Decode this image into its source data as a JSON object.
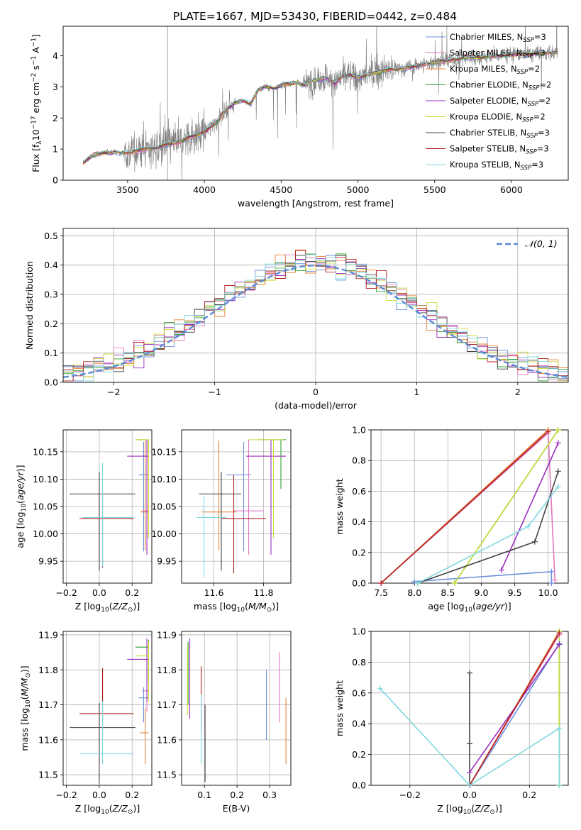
{
  "figure": {
    "title": "PLATE=1667, MJD=53430, FIBERID=0442, z=0.484"
  },
  "series_styles": [
    {
      "name": "Chabrier MILES, N$_{SSP}$=3",
      "label": "Chabrier MILES, N",
      "sub": "SSP",
      "n": "=3",
      "color": "#6a8fdb"
    },
    {
      "name": "Salpeter MILES, N$_{SSP}$=3",
      "label": "Salpeter MILES, N",
      "sub": "SSP",
      "n": "=3",
      "color": "#e377c2"
    },
    {
      "name": "Kroupa MILES, N$_{SSP}$=2",
      "label": "Kroupa MILES, N",
      "sub": "SSP",
      "n": "=2",
      "color": "#e8833a"
    },
    {
      "name": "Chabrier ELODIE, N$_{SSP}$=2",
      "label": "Chabrier ELODIE, N",
      "sub": "SSP",
      "n": "=2",
      "color": "#2ca02c"
    },
    {
      "name": "Salpeter ELODIE, N$_{SSP}$=2",
      "label": "Salpeter ELODIE, N",
      "sub": "SSP",
      "n": "=2",
      "color": "#9b2fbf"
    },
    {
      "name": "Kroupa ELODIE, N$_{SSP}$=2",
      "label": "Kroupa ELODIE, N",
      "sub": "SSP",
      "n": "=2",
      "color": "#cddc39"
    },
    {
      "name": "Chabrier STELIB, N$_{SSP}$=3",
      "label": "Chabrier STELIB, N",
      "sub": "SSP",
      "n": "=3",
      "color": "#444444"
    },
    {
      "name": "Salpeter STELIB, N$_{SSP}$=3",
      "label": "Salpeter STELIB, N",
      "sub": "SSP",
      "n": "=3",
      "color": "#b22222"
    },
    {
      "name": "Kroupa STELIB, N$_{SSP}$=3",
      "label": "Kroupa STELIB, N",
      "sub": "SSP",
      "n": "=3",
      "color": "#80d8e0"
    }
  ],
  "chart_data": [
    {
      "id": "spectrum",
      "type": "line",
      "title": "PLATE=1667, MJD=53430, FIBERID=0442, z=0.484",
      "xlabel": "wavelength [Angstrom, rest frame]",
      "ylabel": "Flux [f_λ 10^-17 erg cm^-2 s^-1 A^-1]",
      "xlim": [
        3080,
        6370
      ],
      "ylim": [
        0,
        4.95
      ],
      "xticks": [
        3500,
        4000,
        4500,
        5000,
        5500,
        6000
      ],
      "yticks": [
        0,
        1,
        2,
        3,
        4
      ],
      "grid": false,
      "legend": "right",
      "data_color": "#808080",
      "model_continuum": {
        "x": [
          3210,
          3240,
          3300,
          3400,
          3500,
          3600,
          3700,
          3760,
          3800,
          3850,
          3900,
          3950,
          4000,
          4050,
          4100,
          4150,
          4200,
          4250,
          4300,
          4350,
          4400,
          4450,
          4500,
          4550,
          4600,
          4650,
          4700,
          4750,
          4800,
          4850,
          4900,
          4950,
          5000,
          5100,
          5200,
          5300,
          5400,
          5500,
          5600,
          5700,
          5800,
          5900,
          6000,
          6100,
          6200,
          6300
        ],
        "y": [
          0.55,
          0.68,
          0.85,
          0.9,
          0.88,
          1.0,
          1.05,
          1.15,
          1.2,
          1.25,
          1.4,
          1.45,
          1.55,
          1.75,
          2.0,
          2.3,
          2.5,
          2.55,
          2.45,
          2.9,
          3.0,
          2.95,
          3.05,
          3.1,
          3.15,
          3.05,
          3.2,
          3.25,
          3.3,
          3.1,
          3.35,
          3.4,
          3.3,
          3.45,
          3.55,
          3.6,
          3.7,
          3.8,
          3.85,
          3.95,
          3.95,
          4.0,
          4.05,
          4.05,
          4.1,
          4.1
        ]
      },
      "series": [
        "Chabrier MILES, N$_{SSP}$=3",
        "Salpeter MILES, N$_{SSP}$=3",
        "Kroupa MILES, N$_{SSP}$=2",
        "Chabrier ELODIE, N$_{SSP}$=2",
        "Salpeter ELODIE, N$_{SSP}$=2",
        "Kroupa ELODIE, N$_{SSP}$=2",
        "Chabrier STELIB, N$_{SSP}$=3",
        "Salpeter STELIB, N$_{SSP}$=3",
        "Kroupa STELIB, N$_{SSP}$=3"
      ]
    },
    {
      "id": "residuals",
      "type": "line",
      "xlabel": "(data-model)/error",
      "ylabel": "Normed distribution",
      "xlim": [
        -2.5,
        2.5
      ],
      "ylim": [
        0,
        0.525
      ],
      "xticks": [
        -2,
        -1,
        0,
        1,
        2
      ],
      "yticks": [
        0.0,
        0.1,
        0.2,
        0.3,
        0.4,
        0.5
      ],
      "grid": true,
      "legend": "top-right",
      "reference": {
        "name": "N(0,1)",
        "label": "𝒩(0, 1)",
        "mean": 0,
        "sigma": 1,
        "color": "#5b8bd6"
      },
      "histogram_bin_width": 0.1,
      "histogram_range": [
        -2.5,
        2.5
      ]
    },
    {
      "id": "age-vs-Z",
      "type": "scatter",
      "xlabel": "Z [log10(Z/Z⊙)]",
      "ylabel": "age [log10(age/yr)]",
      "xlim": [
        -0.22,
        0.32
      ],
      "ylim": [
        9.91,
        10.19
      ],
      "xticks": [
        -0.2,
        0.0,
        0.2
      ],
      "yticks": [
        9.95,
        10.0,
        10.05,
        10.1,
        10.15
      ],
      "xtick_labels": [
        "−0.2",
        "0.0",
        "0.2"
      ],
      "ytick_labels": [
        "9.95",
        "10.00",
        "10.05",
        "10.10",
        "10.15"
      ],
      "grid": true,
      "points": [
        {
          "series": 0,
          "x": 0.27,
          "y": 10.108,
          "xerr": [
            0.03,
            0.03
          ],
          "yerr": [
            0.14,
            0.06
          ]
        },
        {
          "series": 1,
          "x": 0.29,
          "y": 10.042,
          "xerr": [
            0.03,
            0.01
          ],
          "yerr": [
            0.08,
            0.13
          ]
        },
        {
          "series": 2,
          "x": 0.28,
          "y": 10.04,
          "xerr": [
            0.03,
            0.02
          ],
          "yerr": [
            0.07,
            0.13
          ]
        },
        {
          "series": 3,
          "x": 0.3,
          "y": 10.172,
          "xerr": [
            0.08,
            0.0
          ],
          "yerr": [
            0.02,
            0.0
          ]
        },
        {
          "series": 4,
          "x": 0.29,
          "y": 10.142,
          "xerr": [
            0.12,
            0.01
          ],
          "yerr": [
            0.18,
            0.03
          ]
        },
        {
          "series": 5,
          "x": 0.3,
          "y": 10.172,
          "xerr": [
            0.08,
            0.0
          ],
          "yerr": [
            0.18,
            0.0
          ]
        },
        {
          "series": 6,
          "x": 0.0,
          "y": 10.073,
          "xerr": [
            0.18,
            0.22
          ],
          "yerr": [
            0.14,
            0.04
          ]
        },
        {
          "series": 7,
          "x": 0.02,
          "y": 10.028,
          "xerr": [
            0.14,
            0.19
          ],
          "yerr": [
            0.09,
            0.05
          ]
        },
        {
          "series": 8,
          "x": 0.02,
          "y": 10.03,
          "xerr": [
            0.12,
            0.19
          ],
          "yerr": [
            0.09,
            0.1
          ]
        }
      ]
    },
    {
      "id": "age-vs-mass",
      "type": "scatter",
      "xlabel": "mass [log10(M/M⊙)]",
      "ylabel": "",
      "xlim": [
        11.47,
        11.91
      ],
      "ylim": [
        9.91,
        10.19
      ],
      "xticks": [
        11.6,
        11.8
      ],
      "yticks": [
        9.95,
        10.0,
        10.05,
        10.1,
        10.15
      ],
      "xtick_labels": [
        "11.6",
        "11.8"
      ],
      "ytick_labels": [
        "9.95",
        "10.00",
        "10.05",
        "10.10",
        "10.15"
      ],
      "grid": true,
      "points": [
        {
          "series": 0,
          "x": 11.72,
          "y": 10.108,
          "xerr": [
            0.07,
            0.03
          ],
          "yerr": [
            0.14,
            0.06
          ]
        },
        {
          "series": 1,
          "x": 11.74,
          "y": 10.042,
          "xerr": [
            0.06,
            0.06
          ],
          "yerr": [
            0.08,
            0.13
          ]
        },
        {
          "series": 2,
          "x": 11.62,
          "y": 10.04,
          "xerr": [
            0.07,
            0.07
          ],
          "yerr": [
            0.07,
            0.13
          ]
        },
        {
          "series": 3,
          "x": 11.87,
          "y": 10.172,
          "xerr": [
            0.09,
            0.02
          ],
          "yerr": [
            0.09,
            0.0
          ]
        },
        {
          "series": 4,
          "x": 11.83,
          "y": 10.142,
          "xerr": [
            0.1,
            0.06
          ],
          "yerr": [
            0.18,
            0.03
          ]
        },
        {
          "series": 5,
          "x": 11.84,
          "y": 10.172,
          "xerr": [
            0.1,
            0.04
          ],
          "yerr": [
            0.18,
            0.0
          ]
        },
        {
          "series": 6,
          "x": 11.63,
          "y": 10.073,
          "xerr": [
            0.09,
            0.08
          ],
          "yerr": [
            0.14,
            0.04
          ]
        },
        {
          "series": 7,
          "x": 11.68,
          "y": 10.028,
          "xerr": [
            0.05,
            0.13
          ],
          "yerr": [
            0.1,
            0.08
          ]
        },
        {
          "series": 8,
          "x": 11.56,
          "y": 10.03,
          "xerr": [
            0.03,
            0.09
          ],
          "yerr": [
            0.11,
            0.04
          ]
        }
      ]
    },
    {
      "id": "weight-vs-age",
      "type": "line",
      "xlabel": "age [log10(age/yr)]",
      "ylabel": "mass weight",
      "xlim": [
        7.35,
        10.3
      ],
      "ylim": [
        0,
        1.0
      ],
      "xticks": [
        7.5,
        8.0,
        8.5,
        9.0,
        9.5,
        10.0
      ],
      "yticks": [
        0.0,
        0.2,
        0.4,
        0.6,
        0.8,
        1.0
      ],
      "xtick_labels": [
        "7.5",
        "8.0",
        "8.5",
        "9.0",
        "9.5",
        "10.0"
      ],
      "ytick_labels": [
        "0.0",
        "0.2",
        "0.4",
        "0.6",
        "0.8",
        "1.0"
      ],
      "grid": true,
      "series": [
        {
          "series": 0,
          "x": [
            8.0,
            10.05,
            10.05
          ],
          "y": [
            0.01,
            0.075,
            0.0
          ]
        },
        {
          "series": 1,
          "x": [
            7.5,
            10.0,
            10.1
          ],
          "y": [
            0.0,
            0.98,
            0.02
          ]
        },
        {
          "series": 2,
          "x": [
            7.5,
            10.0
          ],
          "y": [
            0.0,
            1.0
          ]
        },
        {
          "series": 3,
          "x": [
            8.6,
            10.15
          ],
          "y": [
            0.0,
            1.0
          ]
        },
        {
          "series": 4,
          "x": [
            9.3,
            10.15
          ],
          "y": [
            0.085,
            0.915
          ]
        },
        {
          "series": 5,
          "x": [
            8.6,
            10.15
          ],
          "y": [
            0.0,
            1.0
          ]
        },
        {
          "series": 6,
          "x": [
            8.05,
            9.8,
            10.15
          ],
          "y": [
            0.0,
            0.27,
            0.73
          ]
        },
        {
          "series": 7,
          "x": [
            7.5,
            10.0
          ],
          "y": [
            0.0,
            0.99
          ]
        },
        {
          "series": 8,
          "x": [
            8.05,
            9.7,
            10.15
          ],
          "y": [
            0.0,
            0.37,
            0.63
          ]
        }
      ]
    },
    {
      "id": "mass-vs-Z",
      "type": "scatter",
      "xlabel": "Z [log10(Z/Z⊙)]",
      "ylabel": "mass [log10(M/M⊙)]",
      "xlim": [
        -0.22,
        0.32
      ],
      "ylim": [
        11.47,
        11.91
      ],
      "xticks": [
        -0.2,
        0.0,
        0.2
      ],
      "yticks": [
        11.5,
        11.6,
        11.7,
        11.8,
        11.9
      ],
      "xtick_labels": [
        "−0.2",
        "0.0",
        "0.2"
      ],
      "ytick_labels": [
        "11.5",
        "11.6",
        "11.7",
        "11.8",
        "11.9"
      ],
      "grid": true,
      "points": [
        {
          "series": 0,
          "x": 0.27,
          "y": 11.72,
          "xerr": [
            0.03,
            0.03
          ],
          "yerr": [
            0.07,
            0.03
          ]
        },
        {
          "series": 1,
          "x": 0.29,
          "y": 11.74,
          "xerr": [
            0.03,
            0.01
          ],
          "yerr": [
            0.06,
            0.06
          ]
        },
        {
          "series": 2,
          "x": 0.28,
          "y": 11.62,
          "xerr": [
            0.03,
            0.02
          ],
          "yerr": [
            0.09,
            0.07
          ]
        },
        {
          "series": 3,
          "x": 0.3,
          "y": 11.865,
          "xerr": [
            0.08,
            0.0
          ],
          "yerr": [
            0.1,
            0.02
          ]
        },
        {
          "series": 4,
          "x": 0.29,
          "y": 11.83,
          "xerr": [
            0.12,
            0.01
          ],
          "yerr": [
            0.12,
            0.06
          ]
        },
        {
          "series": 5,
          "x": 0.3,
          "y": 11.84,
          "xerr": [
            0.08,
            0.0
          ],
          "yerr": [
            0.13,
            0.04
          ]
        },
        {
          "series": 6,
          "x": 0.0,
          "y": 11.635,
          "xerr": [
            0.18,
            0.22
          ],
          "yerr": [
            0.16,
            0.07
          ]
        },
        {
          "series": 7,
          "x": 0.02,
          "y": 11.675,
          "xerr": [
            0.14,
            0.19
          ],
          "yerr": [
            0.06,
            0.13
          ]
        },
        {
          "series": 8,
          "x": 0.02,
          "y": 11.56,
          "xerr": [
            0.14,
            0.19
          ],
          "yerr": [
            0.03,
            0.15
          ]
        }
      ]
    },
    {
      "id": "mass-vs-EBV",
      "type": "scatter",
      "xlabel": "E(B-V)",
      "ylabel": "",
      "xlim": [
        0.03,
        0.365
      ],
      "ylim": [
        11.47,
        11.91
      ],
      "xticks": [
        0.1,
        0.2,
        0.3
      ],
      "yticks": [
        11.5,
        11.6,
        11.7,
        11.8,
        11.9
      ],
      "xtick_labels": [
        "0.1",
        "0.2",
        "0.3"
      ],
      "ytick_labels": [
        "11.5",
        "11.6",
        "11.7",
        "11.8",
        "11.9"
      ],
      "grid": true,
      "points": [
        {
          "series": 0,
          "x": 0.29,
          "y": 11.7,
          "xerr": [
            0,
            0
          ],
          "yerr": [
            0.1,
            0.1
          ]
        },
        {
          "series": 1,
          "x": 0.33,
          "y": 11.75,
          "xerr": [
            0,
            0
          ],
          "yerr": [
            0.1,
            0.1
          ]
        },
        {
          "series": 2,
          "x": 0.35,
          "y": 11.62,
          "xerr": [
            0,
            0
          ],
          "yerr": [
            0.09,
            0.1
          ]
        },
        {
          "series": 3,
          "x": 0.05,
          "y": 11.8,
          "xerr": [
            0,
            0
          ],
          "yerr": [
            0.1,
            0.08
          ]
        },
        {
          "series": 4,
          "x": 0.055,
          "y": 11.78,
          "xerr": [
            0,
            0
          ],
          "yerr": [
            0.12,
            0.11
          ]
        },
        {
          "series": 5,
          "x": 0.048,
          "y": 11.77,
          "xerr": [
            0,
            0
          ],
          "yerr": [
            0.1,
            0.1
          ]
        },
        {
          "series": 6,
          "x": 0.102,
          "y": 11.59,
          "xerr": [
            0,
            0
          ],
          "yerr": [
            0.11,
            0.11
          ]
        },
        {
          "series": 7,
          "x": 0.09,
          "y": 11.72,
          "xerr": [
            0,
            0
          ],
          "yerr": [
            0.1,
            0.09
          ]
        },
        {
          "series": 8,
          "x": 0.09,
          "y": 11.63,
          "xerr": [
            0,
            0
          ],
          "yerr": [
            0.1,
            0.1
          ]
        }
      ]
    },
    {
      "id": "weight-vs-Z",
      "type": "line",
      "xlabel": "Z [log10(Z/Z⊙)]",
      "ylabel": "mass weight",
      "xlim": [
        -0.33,
        0.33
      ],
      "ylim": [
        0,
        1.0
      ],
      "xticks": [
        -0.2,
        0.0,
        0.2
      ],
      "yticks": [
        0.0,
        0.2,
        0.4,
        0.6,
        0.8,
        1.0
      ],
      "xtick_labels": [
        "−0.2",
        "0.0",
        "0.2"
      ],
      "ytick_labels": [
        "0.0",
        "0.2",
        "0.4",
        "0.6",
        "0.8",
        "1.0"
      ],
      "grid": true,
      "series": [
        {
          "series": 0,
          "x": [
            0.0,
            0.3,
            0.3
          ],
          "y": [
            0.0,
            0.92,
            0.0
          ]
        },
        {
          "series": 1,
          "x": [
            0.0,
            0.3
          ],
          "y": [
            0.0,
            0.98
          ]
        },
        {
          "series": 2,
          "x": [
            0.0,
            0.3
          ],
          "y": [
            0.0,
            1.0
          ]
        },
        {
          "series": 3,
          "x": [
            0.3,
            0.3
          ],
          "y": [
            0.0,
            1.0
          ]
        },
        {
          "series": 4,
          "x": [
            0.0,
            0.3
          ],
          "y": [
            0.085,
            0.915
          ]
        },
        {
          "series": 5,
          "x": [
            0.3,
            0.3
          ],
          "y": [
            0.0,
            1.0
          ]
        },
        {
          "series": 6,
          "x": [
            0.0,
            0.0,
            0.0
          ],
          "y": [
            0.0,
            0.27,
            0.73
          ]
        },
        {
          "series": 7,
          "x": [
            0.0,
            0.3
          ],
          "y": [
            0.0,
            0.99
          ]
        },
        {
          "series": 8,
          "x": [
            -0.3,
            0.0,
            0.3,
            0.3
          ],
          "y": [
            0.63,
            0.0,
            0.37,
            0.0
          ]
        }
      ]
    }
  ]
}
